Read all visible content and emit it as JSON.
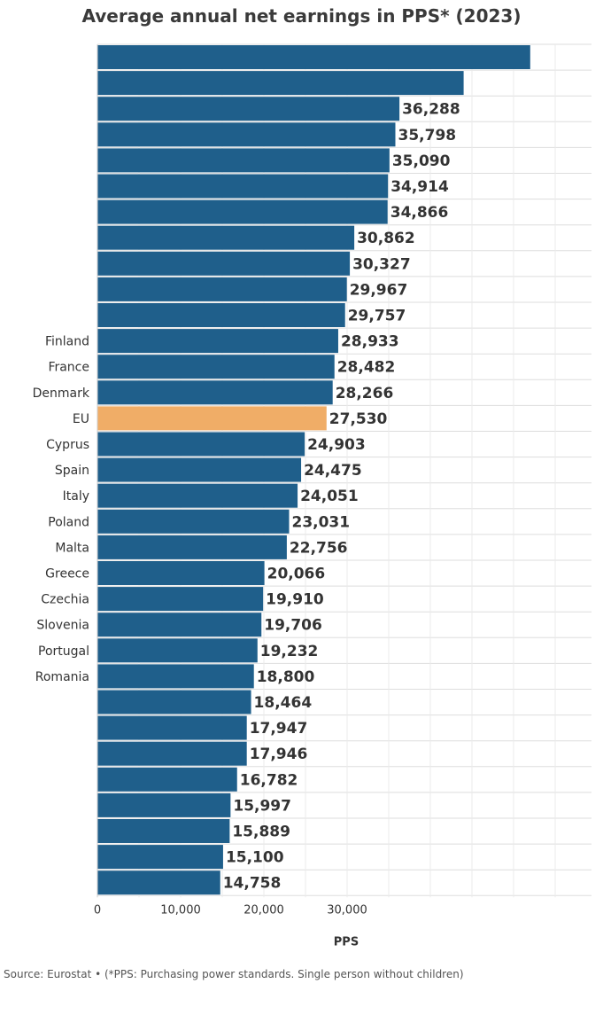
{
  "title": "Average annual net earnings in PPS* (2023)",
  "source": "Source: Eurostat • (*PPS: Purchasing power standards. Single person without children)",
  "colors": {
    "bar": "#1f5f8b",
    "highlight": "#f0ad67",
    "grid": "#dddddd",
    "label": "#333333"
  },
  "chart_data": {
    "type": "bar",
    "orientation": "horizontal",
    "xlabel": "PPS",
    "xlim": [
      0,
      60000
    ],
    "xticks": [
      0,
      10000,
      20000,
      30000
    ],
    "xtick_labels": [
      "0",
      "10,000",
      "20,000",
      "30,000"
    ],
    "grid": true,
    "highlight": "EU",
    "bars": [
      {
        "label": "",
        "value": 52000,
        "value_label": ""
      },
      {
        "label": "",
        "value": 44000,
        "value_label": ""
      },
      {
        "label": "",
        "value": 36288,
        "value_label": "36,288"
      },
      {
        "label": "",
        "value": 35798,
        "value_label": "35,798"
      },
      {
        "label": "",
        "value": 35090,
        "value_label": "35,090"
      },
      {
        "label": "",
        "value": 34914,
        "value_label": "34,914"
      },
      {
        "label": "",
        "value": 34866,
        "value_label": "34,866"
      },
      {
        "label": "",
        "value": 30862,
        "value_label": "30,862"
      },
      {
        "label": "",
        "value": 30327,
        "value_label": "30,327"
      },
      {
        "label": "",
        "value": 29967,
        "value_label": "29,967"
      },
      {
        "label": "",
        "value": 29757,
        "value_label": "29,757"
      },
      {
        "label": "Finland",
        "value": 28933,
        "value_label": "28,933"
      },
      {
        "label": "France",
        "value": 28482,
        "value_label": "28,482"
      },
      {
        "label": "Denmark",
        "value": 28266,
        "value_label": "28,266"
      },
      {
        "label": "EU",
        "value": 27530,
        "value_label": "27,530"
      },
      {
        "label": "Cyprus",
        "value": 24903,
        "value_label": "24,903"
      },
      {
        "label": "Spain",
        "value": 24475,
        "value_label": "24,475"
      },
      {
        "label": "Italy",
        "value": 24051,
        "value_label": "24,051"
      },
      {
        "label": "Poland",
        "value": 23031,
        "value_label": "23,031"
      },
      {
        "label": "Malta",
        "value": 22756,
        "value_label": "22,756"
      },
      {
        "label": "Greece",
        "value": 20066,
        "value_label": "20,066"
      },
      {
        "label": "Czechia",
        "value": 19910,
        "value_label": "19,910"
      },
      {
        "label": "Slovenia",
        "value": 19706,
        "value_label": "19,706"
      },
      {
        "label": "Portugal",
        "value": 19232,
        "value_label": "19,232"
      },
      {
        "label": "Romania",
        "value": 18800,
        "value_label": "18,800"
      },
      {
        "label": "",
        "value": 18464,
        "value_label": "18,464"
      },
      {
        "label": "",
        "value": 17947,
        "value_label": "17,947"
      },
      {
        "label": "",
        "value": 17946,
        "value_label": "17,946"
      },
      {
        "label": "",
        "value": 16782,
        "value_label": "16,782"
      },
      {
        "label": "",
        "value": 15997,
        "value_label": "15,997"
      },
      {
        "label": "",
        "value": 15889,
        "value_label": "15,889"
      },
      {
        "label": "",
        "value": 15100,
        "value_label": "15,100"
      },
      {
        "label": "",
        "value": 14758,
        "value_label": "14,758"
      }
    ]
  }
}
